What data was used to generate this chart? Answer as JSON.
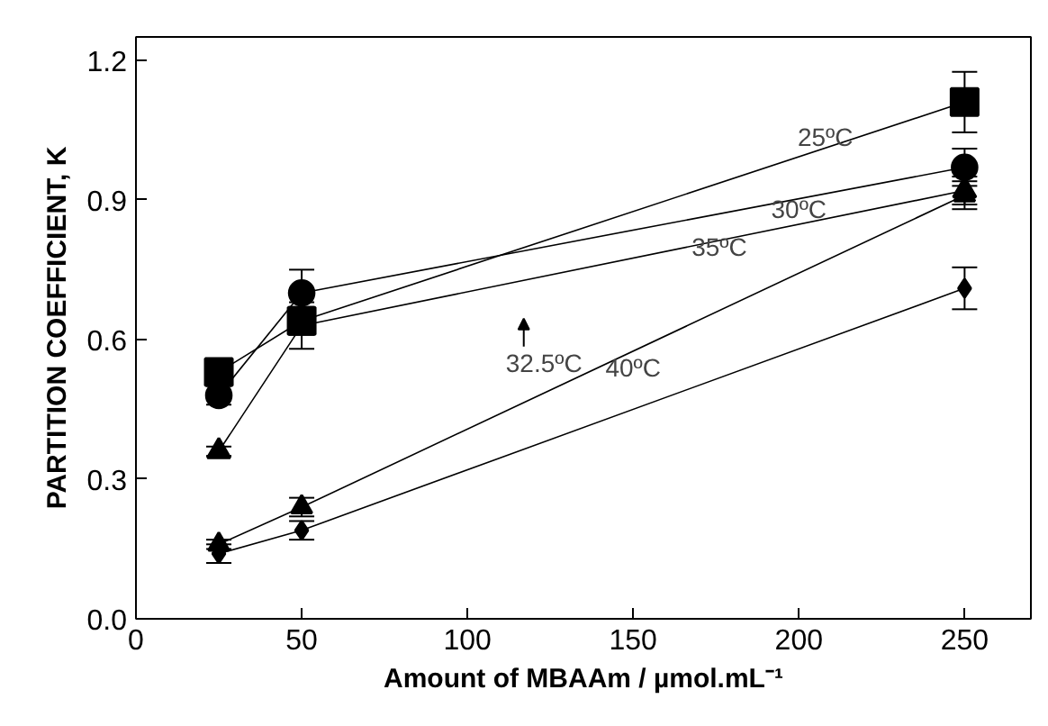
{
  "chart_data": {
    "type": "line",
    "xlabel": "Amount of MBAAm / µmol.mL⁻¹",
    "ylabel": "PARTITION COEFFICIENT, K",
    "x": [
      25,
      50,
      250
    ],
    "series": [
      {
        "color": "#000000",
        "marker": "square",
        "values": [
          0.53,
          0.64,
          1.11
        ],
        "errors": [
          0.02,
          0.03,
          0.065
        ]
      },
      {
        "color": "#000000",
        "marker": "circle",
        "values": [
          0.48,
          0.7,
          0.97
        ],
        "errors": [
          0.02,
          0.05,
          0.04
        ]
      },
      {
        "color": "#000000",
        "marker": "triangle",
        "values": [
          0.36,
          0.63,
          0.92
        ],
        "errors": [
          0.01,
          0.05,
          0.03
        ]
      },
      {
        "color": "#000000",
        "marker": "triangle",
        "values": [
          0.16,
          0.24,
          0.91
        ],
        "errors": [
          0.01,
          0.02,
          0.03
        ]
      },
      {
        "color": "#000000",
        "marker": "diamond",
        "values": [
          0.14,
          0.19,
          0.71
        ],
        "errors": [
          0.02,
          0.02,
          0.045
        ]
      }
    ],
    "annotations": [
      "25ºC",
      "30ºC",
      "32.5ºC",
      "35ºC",
      "40ºC"
    ],
    "xlim": [
      0,
      270
    ],
    "xticks": [
      0,
      50,
      100,
      150,
      200,
      250
    ],
    "ylim": [
      0,
      1.25
    ],
    "yticks": [
      {
        "value": 0,
        "label": "0.0"
      },
      {
        "value": 0.3,
        "label": "0.3"
      },
      {
        "value": 0.6,
        "label": "0.6"
      },
      {
        "value": 0.9,
        "label": "0.9"
      },
      {
        "value": 1.2,
        "label": "1.2"
      }
    ],
    "grid": false
  }
}
